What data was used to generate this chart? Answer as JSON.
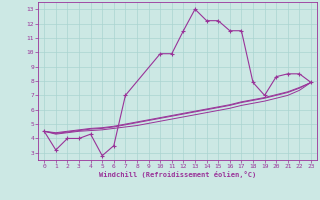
{
  "xlabel": "Windchill (Refroidissement éolien,°C)",
  "background_color": "#cce8e4",
  "grid_color": "#aad4d0",
  "line_color": "#993399",
  "xlim": [
    -0.5,
    23.5
  ],
  "ylim": [
    2.5,
    13.5
  ],
  "xticks": [
    0,
    1,
    2,
    3,
    4,
    5,
    6,
    7,
    8,
    9,
    10,
    11,
    12,
    13,
    14,
    15,
    16,
    17,
    18,
    19,
    20,
    21,
    22,
    23
  ],
  "yticks": [
    3,
    4,
    5,
    6,
    7,
    8,
    9,
    10,
    11,
    12,
    13
  ],
  "main_x": [
    0,
    1,
    2,
    3,
    4,
    5,
    6,
    7,
    10,
    11,
    12,
    13,
    14,
    15,
    16,
    17,
    18,
    19,
    20,
    21,
    22,
    23
  ],
  "main_y": [
    4.5,
    3.2,
    4.0,
    4.0,
    4.3,
    2.8,
    3.5,
    7.0,
    9.9,
    9.9,
    11.5,
    13.0,
    12.2,
    12.2,
    11.5,
    11.5,
    7.9,
    7.0,
    8.3,
    8.5,
    8.5,
    7.9
  ],
  "diag1_x": [
    0,
    1,
    2,
    3,
    4,
    5,
    6,
    7,
    8,
    9,
    10,
    11,
    12,
    13,
    14,
    15,
    16,
    17,
    18,
    19,
    20,
    21,
    22,
    23
  ],
  "diag1_y": [
    4.5,
    4.3,
    4.4,
    4.5,
    4.55,
    4.6,
    4.7,
    4.8,
    4.9,
    5.05,
    5.2,
    5.35,
    5.5,
    5.65,
    5.8,
    5.95,
    6.1,
    6.3,
    6.45,
    6.6,
    6.8,
    7.0,
    7.35,
    7.9
  ],
  "diag2_x": [
    0,
    1,
    2,
    3,
    4,
    5,
    6,
    7,
    8,
    9,
    10,
    11,
    12,
    13,
    14,
    15,
    16,
    17,
    18,
    19,
    20,
    21,
    22,
    23
  ],
  "diag2_y": [
    4.5,
    4.35,
    4.45,
    4.55,
    4.65,
    4.7,
    4.8,
    4.95,
    5.1,
    5.25,
    5.4,
    5.55,
    5.7,
    5.85,
    6.0,
    6.15,
    6.3,
    6.5,
    6.65,
    6.8,
    7.0,
    7.2,
    7.5,
    7.9
  ],
  "diag3_x": [
    0,
    1,
    2,
    3,
    4,
    5,
    6,
    7,
    8,
    9,
    10,
    11,
    12,
    13,
    14,
    15,
    16,
    17,
    18,
    19,
    20,
    21,
    22,
    23
  ],
  "diag3_y": [
    4.5,
    4.4,
    4.5,
    4.6,
    4.7,
    4.75,
    4.85,
    5.0,
    5.15,
    5.3,
    5.45,
    5.6,
    5.75,
    5.9,
    6.05,
    6.2,
    6.35,
    6.55,
    6.7,
    6.85,
    7.05,
    7.25,
    7.55,
    7.9
  ]
}
